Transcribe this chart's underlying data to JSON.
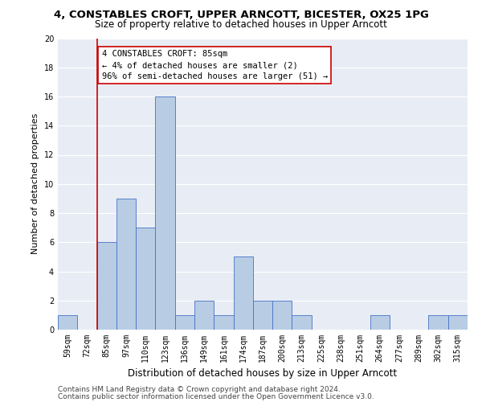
{
  "title1": "4, CONSTABLES CROFT, UPPER ARNCOTT, BICESTER, OX25 1PG",
  "title2": "Size of property relative to detached houses in Upper Arncott",
  "xlabel": "Distribution of detached houses by size in Upper Arncott",
  "ylabel": "Number of detached properties",
  "categories": [
    "59sqm",
    "72sqm",
    "85sqm",
    "97sqm",
    "110sqm",
    "123sqm",
    "136sqm",
    "149sqm",
    "161sqm",
    "174sqm",
    "187sqm",
    "200sqm",
    "213sqm",
    "225sqm",
    "238sqm",
    "251sqm",
    "264sqm",
    "277sqm",
    "289sqm",
    "302sqm",
    "315sqm"
  ],
  "values": [
    1,
    0,
    6,
    9,
    7,
    16,
    1,
    2,
    1,
    5,
    2,
    2,
    1,
    0,
    0,
    0,
    1,
    0,
    0,
    1,
    1
  ],
  "bar_color": "#b8cce4",
  "bar_edge_color": "#4472c4",
  "red_line_index": 2,
  "annotation_text": "4 CONSTABLES CROFT: 85sqm\n← 4% of detached houses are smaller (2)\n96% of semi-detached houses are larger (51) →",
  "annotation_box_color": "#ffffff",
  "annotation_box_edge_color": "#cc0000",
  "red_line_color": "#cc0000",
  "ylim": [
    0,
    20
  ],
  "yticks": [
    0,
    2,
    4,
    6,
    8,
    10,
    12,
    14,
    16,
    18,
    20
  ],
  "footer1": "Contains HM Land Registry data © Crown copyright and database right 2024.",
  "footer2": "Contains public sector information licensed under the Open Government Licence v3.0.",
  "background_color": "#e8edf5",
  "grid_color": "#ffffff",
  "title1_fontsize": 9.5,
  "title2_fontsize": 8.5,
  "annotation_fontsize": 7.5,
  "footer_fontsize": 6.5,
  "xlabel_fontsize": 8.5,
  "ylabel_fontsize": 8.0,
  "tick_fontsize": 7.0
}
